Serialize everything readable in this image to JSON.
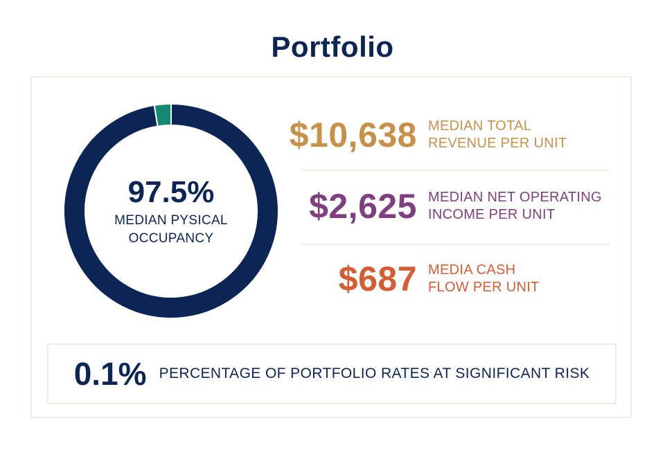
{
  "title": "Portfolio",
  "occupancy": {
    "value_text": "97.5%",
    "label": "MEDIAN PYSICAL\nOCCUPANCY"
  },
  "metrics": [
    {
      "value": "$10,638",
      "label": "MEDIAN TOTAL\nREVENUE PER UNIT",
      "color": "#c7914a"
    },
    {
      "value": "$2,625",
      "label": "MEDIAN NET OPERATING\nINCOME PER UNIT",
      "color": "#80407f"
    },
    {
      "value": "$687",
      "label": "MEDIA CASH\nFLOW PER UNIT",
      "color": "#d45d34"
    }
  ],
  "risk": {
    "value": "0.1%",
    "label": "PERCENTAGE OF PORTFOLIO RATES AT SIGNIFICANT RISK"
  },
  "chart_data": {
    "type": "pie",
    "values": [
      97.5,
      2.5
    ],
    "colors": [
      "#0b2655",
      "#138a73"
    ],
    "separator_color": "#ffffff"
  }
}
